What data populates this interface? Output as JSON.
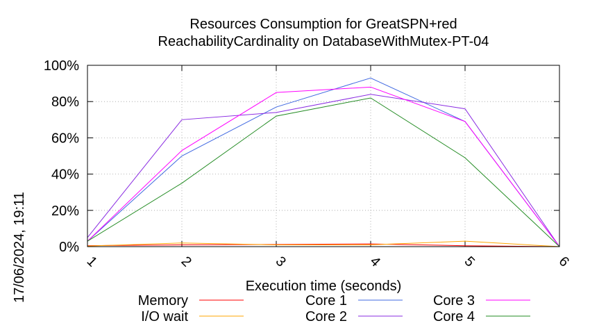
{
  "chart_data": {
    "type": "line",
    "title": [
      "Resources Consumption for GreatSPN+red",
      "ReachabilityCardinality on DatabaseWithMutex-PT-04"
    ],
    "xlabel": "Execution time (seconds)",
    "ylabel": "",
    "x": [
      1,
      2,
      3,
      4,
      5,
      6
    ],
    "x_ticks": [
      "1",
      "2",
      "3",
      "4",
      "5",
      "6"
    ],
    "xlim": [
      1,
      6
    ],
    "ylim": [
      0,
      100
    ],
    "y_ticks": [
      "0%",
      "20%",
      "40%",
      "60%",
      "80%",
      "100%"
    ],
    "grid": true,
    "legend_position": "bottom",
    "timestamp": "17/06/2024, 19:11",
    "series": [
      {
        "name": "Memory",
        "color": "#ff0000",
        "values": [
          0.5,
          1.0,
          1.2,
          1.5,
          0.5,
          0
        ]
      },
      {
        "name": "I/O wait",
        "color": "#ffa500",
        "values": [
          0.3,
          2.0,
          1.0,
          1.0,
          3.0,
          0
        ]
      },
      {
        "name": "Core 1",
        "color": "#4169e1",
        "values": [
          3,
          50,
          77,
          93,
          69,
          0
        ]
      },
      {
        "name": "Core 2",
        "color": "#8a2be2",
        "values": [
          5,
          70,
          74,
          84,
          76,
          0
        ]
      },
      {
        "name": "Core 3",
        "color": "#ff00ff",
        "values": [
          3,
          53,
          85,
          88,
          69,
          0
        ]
      },
      {
        "name": "Core 4",
        "color": "#228b22",
        "values": [
          3,
          35,
          72,
          82,
          49,
          0
        ]
      }
    ]
  }
}
